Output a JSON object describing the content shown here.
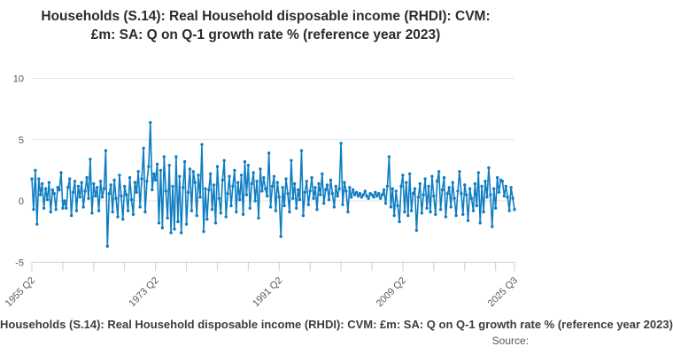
{
  "title": "Households (S.14): Real Household disposable income (RHDI): CVM: £m: SA: Q on Q-1 growth rate % (reference year 2023)",
  "legend": {
    "series_label": "Households (S.14): Real Household disposable income (RHDI): CVM: £m: SA: Q on Q-1 growth rate % (reference year 2023)"
  },
  "footer": {
    "source_label": "Source:"
  },
  "colors": {
    "series": "#0e7dc2",
    "grid": "#e2e2e2",
    "axis": "#c4d1e1",
    "tick_label": "#595959",
    "title_text": "#2b2b2b"
  },
  "chart_data": {
    "type": "line",
    "title": "Households (S.14): Real Household disposable income (RHDI): CVM: £m: SA: Q on Q-1 growth rate % (reference year 2023)",
    "x_start": "1955 Q2",
    "x_end": "2025 Q3",
    "frequency": "quarterly",
    "x_tick_labels": [
      "1955 Q2",
      "1973 Q2",
      "1991 Q2",
      "2009 Q2",
      "2025 Q3"
    ],
    "x_tick_indices": [
      0,
      72,
      144,
      216,
      281
    ],
    "minor_tick_step": 18,
    "y_ticks": [
      10,
      5,
      0,
      -5
    ],
    "y_gridlines": [
      0,
      5,
      10
    ],
    "ylim": [
      -5,
      10
    ],
    "xlabel": "",
    "ylabel": "",
    "grid": "horizontal",
    "markers": true,
    "legend_position": "bottom",
    "series": [
      {
        "name": "Households (S.14): Real Household disposable income (RHDI): CVM: £m: SA: Q on Q-1 growth rate % (reference year 2023)",
        "values": [
          1.8,
          -0.7,
          2.5,
          -1.9,
          1.8,
          0.5,
          1.4,
          -0.6,
          1.0,
          0.1,
          1.5,
          -0.9,
          0.9,
          0.6,
          -0.7,
          1.1,
          0.9,
          2.3,
          -0.6,
          0.0,
          -0.6,
          1.1,
          1.8,
          -1.2,
          0.7,
          1.6,
          -0.8,
          1.2,
          0.3,
          1.5,
          -0.5,
          0.8,
          1.9,
          0.2,
          3.4,
          -1.0,
          1.4,
          0.4,
          1.1,
          -0.8,
          1.6,
          0.3,
          1.0,
          4.1,
          -3.7,
          0.6,
          1.3,
          -0.9,
          1.7,
          0.2,
          -1.3,
          2.1,
          0.4,
          -1.5,
          1.2,
          0.5,
          -0.8,
          1.9,
          0.1,
          -1.1,
          1.5,
          0.7,
          2.4,
          -0.5,
          1.8,
          4.3,
          -0.9,
          1.6,
          2.8,
          6.4,
          0.9,
          2.2,
          1.7,
          3.0,
          -1.8,
          2.5,
          -2.2,
          3.6,
          0.8,
          -1.4,
          2.9,
          -2.6,
          1.2,
          -2.3,
          3.6,
          -1.7,
          2.0,
          -2.6,
          1.1,
          3.2,
          -1.9,
          0.7,
          2.6,
          -0.8,
          2.4,
          1.5,
          -1.2,
          2.1,
          0.3,
          4.6,
          -2.5,
          1.0,
          -1.5,
          0.9,
          2.2,
          -0.7,
          1.3,
          -1.8,
          2.8,
          0.2,
          -1.0,
          1.7,
          3.3,
          -1.3,
          0.6,
          2.0,
          -0.4,
          1.2,
          2.5,
          -0.9,
          1.5,
          0.1,
          2.1,
          -1.1,
          3.2,
          0.5,
          2.9,
          -0.6,
          1.4,
          2.3,
          0.0,
          1.6,
          -1.4,
          2.6,
          0.8,
          1.9,
          1.0,
          0.4,
          3.9,
          -0.5,
          1.2,
          2.0,
          -0.8,
          1.5,
          0.3,
          -2.9,
          1.1,
          -0.4,
          1.8,
          0.6,
          -0.9,
          3.3,
          0.2,
          1.4,
          -0.6,
          0.9,
          0.1,
          4.1,
          -1.2,
          0.7,
          1.6,
          -0.3,
          0.8,
          1.9,
          0.2,
          1.1,
          -0.7,
          1.4,
          0.5,
          2.2,
          -0.2,
          0.9,
          1.3,
          0.1,
          1.7,
          0.6,
          -0.5,
          1.2,
          0.4,
          1.0,
          4.7,
          -0.3,
          1.5,
          0.8,
          -0.9,
          1.1,
          0.3,
          0.9,
          0.5,
          0.7,
          0.4,
          0.6,
          0.3,
          0.5,
          0.8,
          0.4,
          0.2,
          0.6,
          0.5,
          0.3,
          0.7,
          0.4,
          0.6,
          0.2,
          0.5,
          0.9,
          -0.2,
          1.2,
          3.6,
          -0.5,
          1.0,
          -1.2,
          0.8,
          -0.4,
          -1.7,
          1.2,
          2.1,
          -0.9,
          1.5,
          -1.2,
          2.2,
          -0.8,
          0.6,
          1.0,
          -2.4,
          0.3,
          1.4,
          -1.0,
          0.5,
          1.8,
          -0.6,
          1.2,
          -0.9,
          2.0,
          0.4,
          -1.1,
          1.6,
          2.4,
          -0.7,
          0.9,
          1.9,
          -1.3,
          0.6,
          1.1,
          -0.5,
          1.5,
          0.2,
          -1.2,
          0.8,
          2.4,
          0.6,
          -1.1,
          1.3,
          0.5,
          -1.6,
          1.0,
          0.2,
          -0.8,
          1.4,
          -0.4,
          2.3,
          -1.8,
          1.2,
          -0.9,
          1.6,
          0.3,
          2.7,
          0.5,
          -2.1,
          1.0,
          -0.6,
          1.9,
          0.7,
          1.7,
          1.6,
          0.4,
          1.2,
          0.3,
          -0.8,
          1.1,
          0.2,
          -0.7
        ]
      }
    ]
  }
}
